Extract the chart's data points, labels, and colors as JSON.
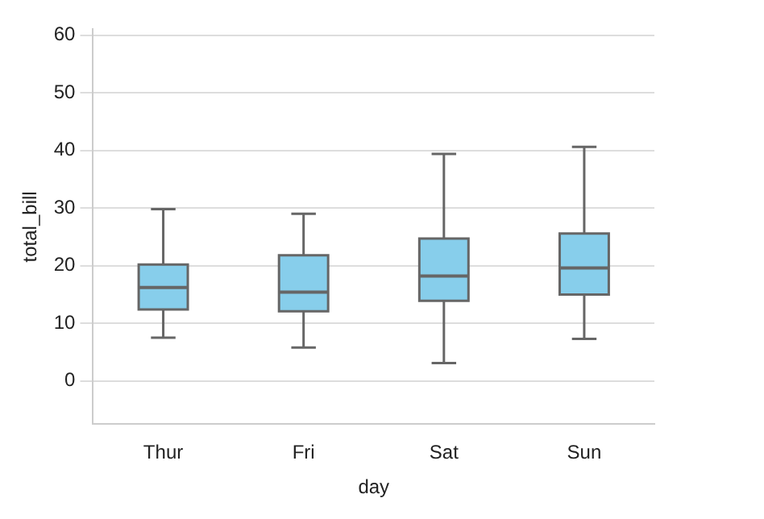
{
  "chart_data": {
    "type": "box",
    "xlabel": "day",
    "ylabel": "total_bill",
    "categories": [
      "Thur",
      "Fri",
      "Sat",
      "Sun"
    ],
    "color": "#87ceeb",
    "boxes": [
      {
        "low": 7.5,
        "q1": 12.4,
        "median": 16.2,
        "q3": 20.2,
        "high": 29.8
      },
      {
        "low": 5.8,
        "q1": 12.1,
        "median": 15.4,
        "q3": 21.8,
        "high": 29
      },
      {
        "low": 3.1,
        "q1": 13.9,
        "median": 18.2,
        "q3": 24.7,
        "high": 39.4
      },
      {
        "low": 7.3,
        "q1": 15,
        "median": 19.6,
        "q3": 25.6,
        "high": 40.6
      }
    ],
    "ylim": [
      -7.5,
      61
    ],
    "yticks": [
      0,
      10,
      20,
      30,
      40,
      50,
      60
    ],
    "grid": "y"
  }
}
